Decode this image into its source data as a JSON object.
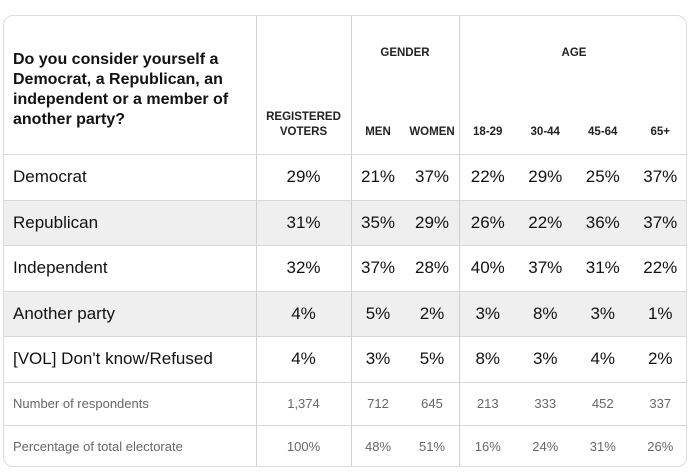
{
  "table": {
    "question": "Do you consider yourself a Democrat, a Republican, an independent or a member of another party?",
    "groups": [
      {
        "label": "GENDER",
        "from": 1,
        "to": 2
      },
      {
        "label": "AGE",
        "from": 3,
        "to": 6
      }
    ],
    "columns": [
      "REGISTERED VOTERS",
      "MEN",
      "WOMEN",
      "18-29",
      "30-44",
      "45-64",
      "65+"
    ],
    "rows": [
      {
        "label": "Democrat",
        "cells": [
          "29%",
          "21%",
          "37%",
          "22%",
          "29%",
          "25%",
          "37%"
        ]
      },
      {
        "label": "Republican",
        "cells": [
          "31%",
          "35%",
          "29%",
          "26%",
          "22%",
          "36%",
          "37%"
        ]
      },
      {
        "label": "Independent",
        "cells": [
          "32%",
          "37%",
          "28%",
          "40%",
          "37%",
          "31%",
          "22%"
        ]
      },
      {
        "label": "Another party",
        "cells": [
          "4%",
          "5%",
          "2%",
          "3%",
          "8%",
          "3%",
          "1%"
        ]
      },
      {
        "label": "[VOL] Don't know/Refused",
        "cells": [
          "4%",
          "3%",
          "5%",
          "8%",
          "3%",
          "4%",
          "2%"
        ]
      }
    ],
    "footer_rows": [
      {
        "label": "Number of respondents",
        "cells": [
          "1,374",
          "712",
          "645",
          "213",
          "333",
          "452",
          "337"
        ]
      },
      {
        "label": "Percentage of total electorate",
        "cells": [
          "100%",
          "48%",
          "51%",
          "16%",
          "24%",
          "31%",
          "26%"
        ]
      }
    ]
  }
}
